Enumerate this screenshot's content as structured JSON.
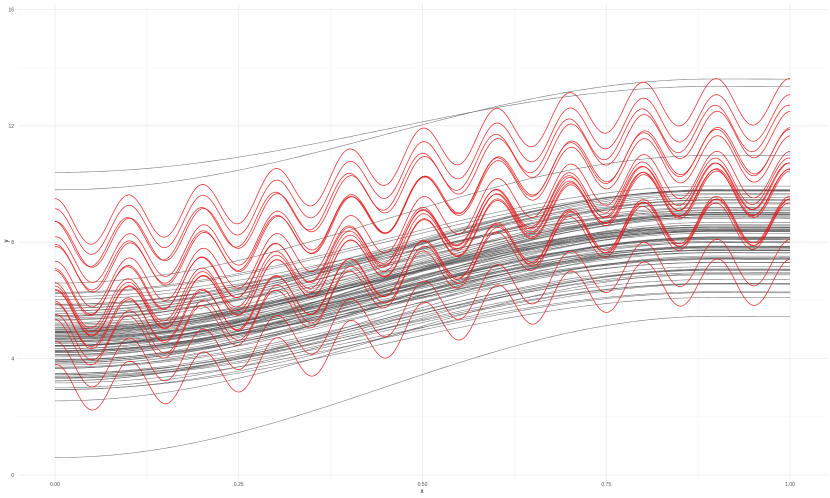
{
  "chart_data": {
    "type": "line",
    "title": "",
    "xlabel": "x",
    "ylabel": "y",
    "xlim": [
      0,
      1
    ],
    "ylim": [
      0,
      14
    ],
    "x_ticks": [
      0,
      0.25,
      0.5,
      0.75,
      1
    ],
    "x_tick_labels": [
      "0.00",
      "0.25",
      "0.50",
      "0.75",
      "1.00"
    ],
    "y_ticks": [
      0,
      4,
      8,
      12,
      16
    ],
    "y_tick_labels": [
      "0",
      "4",
      "8",
      "12",
      "16"
    ],
    "grid": true,
    "legend": "none",
    "background_curves": {
      "color": "#5a5a5a",
      "count": 100,
      "shape": "sigmoid rising from x=0 to plateau near x=0.9",
      "start_range": [
        0.6,
        10.4
      ],
      "end_range": [
        5.5,
        13.4
      ]
    },
    "highlight_curves": {
      "color": "#e41a1c",
      "count": 20,
      "shape": "background trend plus sinusoidal oscillation",
      "oscillation_cycles": 10,
      "oscillation_amplitude": 0.8,
      "start_range": [
        3.2,
        8.9
      ],
      "end_range": [
        9.1,
        12.1
      ]
    }
  }
}
